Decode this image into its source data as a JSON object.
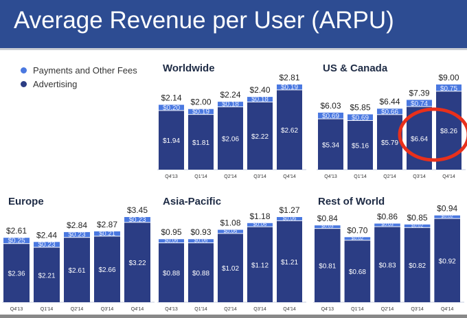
{
  "title": "Average Revenue per User (ARPU)",
  "legend": [
    {
      "label": "Payments and Other Fees",
      "color": "#4a78e0"
    },
    {
      "label": "Advertising",
      "color": "#2b3d84"
    }
  ],
  "annotation": {
    "shape": "ellipse",
    "color": "#e8301c",
    "highlights": "US & Canada Q3'14 and Q4'14"
  },
  "chart_data": [
    {
      "type": "bar",
      "stacked": true,
      "title": "Worldwide",
      "categories": [
        "Q4'13",
        "Q1'14",
        "Q2'14",
        "Q3'14",
        "Q4'14"
      ],
      "totals": [
        "$2.14",
        "$2.00",
        "$2.24",
        "$2.40",
        "$2.81"
      ],
      "series": [
        {
          "name": "Advertising",
          "values": [
            1.94,
            1.81,
            2.06,
            2.22,
            2.62
          ],
          "labels": [
            "$1.94",
            "$1.81",
            "$2.06",
            "$2.22",
            "$2.62"
          ]
        },
        {
          "name": "Payments and Other Fees",
          "values": [
            0.2,
            0.19,
            0.18,
            0.18,
            0.19
          ],
          "labels": [
            "$0.20",
            "$0.19",
            "$0.18",
            "$0.18",
            "$0.19"
          ]
        }
      ]
    },
    {
      "type": "bar",
      "stacked": true,
      "title": "US & Canada",
      "categories": [
        "Q4'13",
        "Q1'14",
        "Q2'14",
        "Q3'14",
        "Q4'14"
      ],
      "totals": [
        "$6.03",
        "$5.85",
        "$6.44",
        "$7.39",
        "$9.00"
      ],
      "series": [
        {
          "name": "Advertising",
          "values": [
            5.34,
            5.16,
            5.79,
            6.64,
            8.26
          ],
          "labels": [
            "$5.34",
            "$5.16",
            "$5.79",
            "$6.64",
            "$8.26"
          ]
        },
        {
          "name": "Payments and Other Fees",
          "values": [
            0.69,
            0.69,
            0.66,
            0.74,
            0.75
          ],
          "labels": [
            "$0.69",
            "$0.69",
            "$0.66",
            "$0.74",
            "$0.75"
          ]
        }
      ]
    },
    {
      "type": "bar",
      "stacked": true,
      "title": "Europe",
      "categories": [
        "Q4'13",
        "Q1'14",
        "Q2'14",
        "Q3'14",
        "Q4'14"
      ],
      "totals": [
        "$2.61",
        "$2.44",
        "$2.84",
        "$2.87",
        "$3.45"
      ],
      "series": [
        {
          "name": "Advertising",
          "values": [
            2.36,
            2.21,
            2.61,
            2.66,
            3.22
          ],
          "labels": [
            "$2.36",
            "$2.21",
            "$2.61",
            "$2.66",
            "$3.22"
          ]
        },
        {
          "name": "Payments and Other Fees",
          "values": [
            0.25,
            0.23,
            0.23,
            0.21,
            0.23
          ],
          "labels": [
            "$0.25",
            "$0.23",
            "$0.23",
            "$0.21",
            "$0.23"
          ]
        }
      ]
    },
    {
      "type": "bar",
      "stacked": true,
      "title": "Asia-Pacific",
      "categories": [
        "Q4'13",
        "Q1'14",
        "Q2'14",
        "Q3'14",
        "Q4'14"
      ],
      "totals": [
        "$0.95",
        "$0.93",
        "$1.08",
        "$1.18",
        "$1.27"
      ],
      "series": [
        {
          "name": "Advertising",
          "values": [
            0.88,
            0.88,
            1.02,
            1.12,
            1.21
          ],
          "labels": [
            "$0.88",
            "$0.88",
            "$1.02",
            "$1.12",
            "$1.21"
          ]
        },
        {
          "name": "Payments and Other Fees",
          "values": [
            0.06,
            0.06,
            0.06,
            0.06,
            0.06
          ],
          "labels": [
            "$0.06",
            "$0.06",
            "$0.06",
            "$0.06",
            "$0.06"
          ]
        }
      ]
    },
    {
      "type": "bar",
      "stacked": true,
      "title": "Rest of World",
      "categories": [
        "Q4'13",
        "Q1'14",
        "Q2'14",
        "Q3'14",
        "Q4'14"
      ],
      "totals": [
        "$0.84",
        "$0.70",
        "$0.86",
        "$0.85",
        "$0.94"
      ],
      "series": [
        {
          "name": "Advertising",
          "values": [
            0.81,
            0.68,
            0.83,
            0.82,
            0.92
          ],
          "labels": [
            "$0.81",
            "$0.68",
            "$0.83",
            "$0.82",
            "$0.92"
          ]
        },
        {
          "name": "Payments and Other Fees",
          "values": [
            0.03,
            0.02,
            0.03,
            0.02,
            0.02
          ],
          "labels": [
            "$0.03",
            "$0.02",
            "$0.03",
            "$0.02",
            "$0.02"
          ]
        }
      ]
    }
  ]
}
